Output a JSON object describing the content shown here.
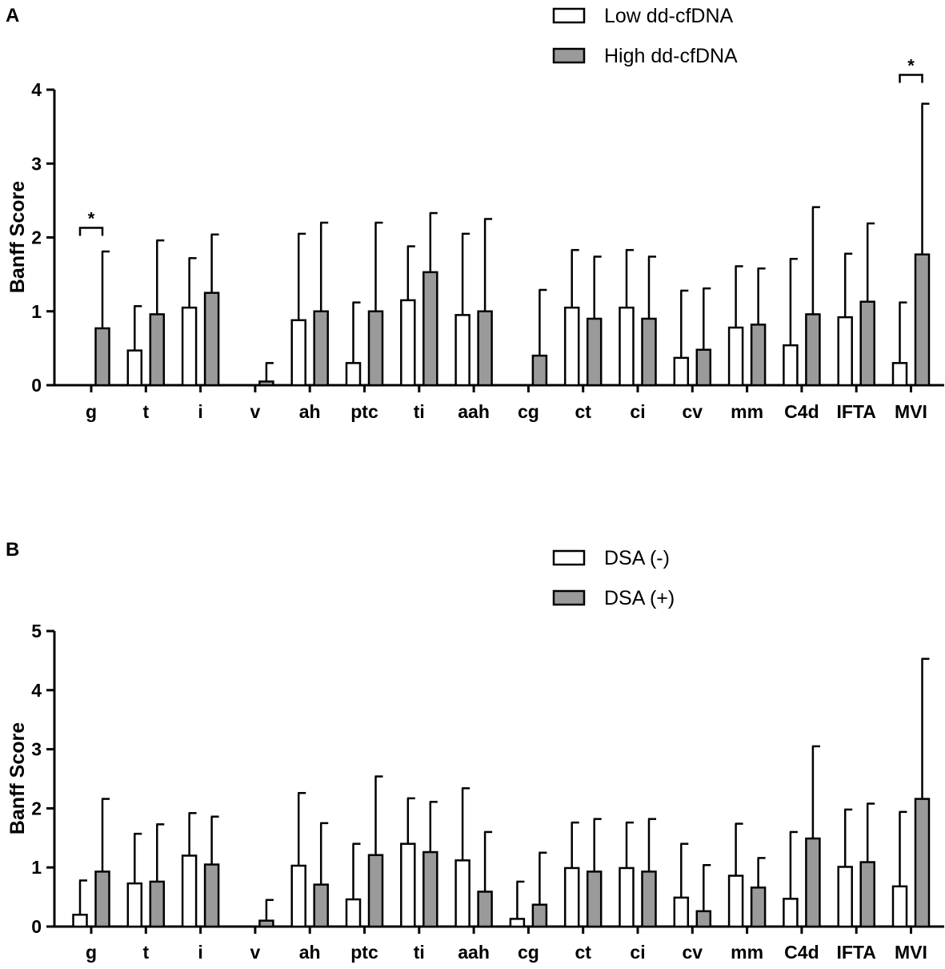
{
  "colors": {
    "low": "#ffffff",
    "high": "#9a9a9a",
    "stroke": "#000000"
  },
  "chart_data": [
    {
      "type": "bar",
      "panel": "A",
      "title": "",
      "xlabel": "",
      "ylabel": "Banff Score",
      "ylim": [
        0,
        4
      ],
      "yticks": [
        0,
        1,
        2,
        3,
        4
      ],
      "categories": [
        "g",
        "t",
        "i",
        "v",
        "ah",
        "ptc",
        "ti",
        "aah",
        "cg",
        "ct",
        "ci",
        "cv",
        "mm",
        "C4d",
        "IFTA",
        "MVI"
      ],
      "series": [
        {
          "name": "Low dd-cfDNA",
          "values": [
            0,
            0.47,
            1.05,
            0,
            0.88,
            0.3,
            1.15,
            0.95,
            0,
            1.05,
            1.05,
            0.37,
            0.78,
            0.54,
            0.92,
            0.3
          ],
          "errors": [
            0,
            0.6,
            0.67,
            0,
            1.17,
            0.82,
            0.73,
            1.1,
            0,
            0.78,
            0.78,
            0.91,
            0.83,
            1.17,
            0.86,
            0.82
          ]
        },
        {
          "name": "High dd-cfDNA",
          "values": [
            0.77,
            0.96,
            1.25,
            0.05,
            1.0,
            1.0,
            1.53,
            1.0,
            0.4,
            0.9,
            0.9,
            0.48,
            0.82,
            0.96,
            1.13,
            1.77
          ],
          "errors": [
            1.04,
            1.0,
            0.79,
            0.25,
            1.2,
            1.2,
            0.8,
            1.25,
            0.89,
            0.84,
            0.84,
            0.83,
            0.76,
            1.45,
            1.06,
            2.04
          ]
        }
      ],
      "annotations": [
        {
          "category_index": 0,
          "text": "*",
          "level": 2.13
        },
        {
          "category_index": 15,
          "text": "*",
          "level": 4.2
        }
      ],
      "legend_position": "top-right"
    },
    {
      "type": "bar",
      "panel": "B",
      "title": "",
      "xlabel": "",
      "ylabel": "Banff Score",
      "ylim": [
        0,
        5
      ],
      "yticks": [
        0,
        1,
        2,
        3,
        4,
        5
      ],
      "categories": [
        "g",
        "t",
        "i",
        "v",
        "ah",
        "ptc",
        "ti",
        "aah",
        "cg",
        "ct",
        "ci",
        "cv",
        "mm",
        "C4d",
        "IFTA",
        "MVI"
      ],
      "series": [
        {
          "name": "DSA (-)",
          "values": [
            0.2,
            0.73,
            1.2,
            0,
            1.03,
            0.46,
            1.4,
            1.12,
            0.13,
            0.99,
            0.99,
            0.49,
            0.86,
            0.47,
            1.01,
            0.68
          ],
          "errors": [
            0.58,
            0.84,
            0.72,
            0,
            1.23,
            0.94,
            0.77,
            1.22,
            0.63,
            0.77,
            0.77,
            0.91,
            0.88,
            1.13,
            0.97,
            1.26
          ]
        },
        {
          "name": "DSA (+)",
          "values": [
            0.93,
            0.76,
            1.05,
            0.1,
            0.71,
            1.21,
            1.26,
            0.59,
            0.37,
            0.93,
            0.93,
            0.26,
            0.66,
            1.49,
            1.09,
            2.16
          ],
          "errors": [
            1.23,
            0.97,
            0.81,
            0.35,
            1.04,
            1.33,
            0.85,
            1.01,
            0.88,
            0.89,
            0.89,
            0.78,
            0.5,
            1.56,
            0.99,
            2.37
          ]
        }
      ],
      "annotations": [],
      "legend_position": "top-right"
    }
  ]
}
